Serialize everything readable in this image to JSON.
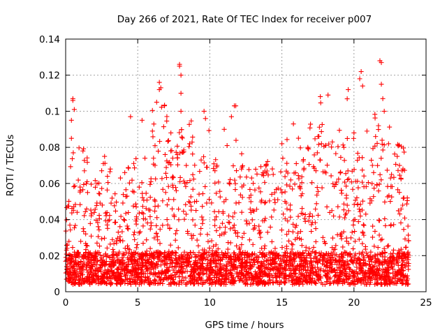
{
  "chart_data": {
    "type": "scatter",
    "title": "Day 266 of 2021, Rate Of TEC Index for receiver p007",
    "xlabel": "GPS time / hours",
    "ylabel": "ROTI / TECUs",
    "xlim": [
      0,
      25
    ],
    "ylim": [
      0,
      0.14
    ],
    "xticks": [
      0,
      5,
      10,
      15,
      20,
      25
    ],
    "yticks": [
      0,
      0.02,
      0.04,
      0.06,
      0.08,
      0.1,
      0.12,
      0.14
    ],
    "xtick_labels": [
      "0",
      "5",
      "10",
      "15",
      "20",
      "25"
    ],
    "ytick_labels": [
      "0",
      "0.02",
      "0.04",
      "0.06",
      "0.08",
      "0.1",
      "0.12",
      "0.14"
    ],
    "grid": true,
    "marker": "+",
    "color": "#ff0000",
    "series": [
      {
        "points": [
          [
            0.5,
            0.107
          ],
          [
            0.5,
            0.106
          ],
          [
            0.4,
            0.095
          ],
          [
            0.6,
            0.101
          ],
          [
            0.4,
            0.085
          ],
          [
            1.2,
            0.078
          ],
          [
            4.5,
            0.097
          ],
          [
            5.3,
            0.095
          ],
          [
            6.5,
            0.116
          ],
          [
            6.6,
            0.113
          ],
          [
            6.5,
            0.112
          ],
          [
            7.3,
            0.088
          ],
          [
            7.9,
            0.126
          ],
          [
            7.9,
            0.125
          ],
          [
            8.0,
            0.12
          ],
          [
            8.0,
            0.11
          ],
          [
            8.0,
            0.1
          ],
          [
            9.6,
            0.1
          ],
          [
            9.7,
            0.096
          ],
          [
            11.7,
            0.103
          ],
          [
            11.8,
            0.103
          ],
          [
            11.5,
            0.097
          ],
          [
            11.0,
            0.09
          ],
          [
            15.8,
            0.093
          ],
          [
            18.2,
            0.109
          ],
          [
            19.6,
            0.112
          ],
          [
            20.4,
            0.118
          ],
          [
            20.5,
            0.122
          ],
          [
            20.6,
            0.114
          ],
          [
            21.8,
            0.128
          ],
          [
            21.9,
            0.127
          ],
          [
            21.9,
            0.115
          ],
          [
            22.0,
            0.107
          ],
          [
            22.1,
            0.1
          ],
          [
            21.7,
            0.092
          ],
          [
            1.0,
            0.058
          ],
          [
            1.3,
            0.067
          ],
          [
            2.7,
            0.075
          ],
          [
            3.1,
            0.068
          ],
          [
            3.8,
            0.063
          ],
          [
            4.1,
            0.066
          ],
          [
            5.5,
            0.074
          ],
          [
            6.2,
            0.07
          ],
          [
            6.9,
            0.076
          ],
          [
            8.6,
            0.082
          ],
          [
            9.4,
            0.073
          ],
          [
            10.5,
            0.07
          ],
          [
            11.2,
            0.081
          ],
          [
            12.2,
            0.068
          ],
          [
            12.9,
            0.063
          ],
          [
            13.7,
            0.066
          ],
          [
            14.4,
            0.065
          ],
          [
            15.0,
            0.082
          ],
          [
            16.0,
            0.071
          ],
          [
            16.8,
            0.08
          ],
          [
            17.5,
            0.086
          ],
          [
            18.5,
            0.083
          ],
          [
            19.3,
            0.08
          ],
          [
            20.0,
            0.088
          ],
          [
            20.9,
            0.089
          ],
          [
            21.5,
            0.086
          ],
          [
            22.4,
            0.082
          ],
          [
            23.0,
            0.075
          ],
          [
            23.4,
            0.068
          ],
          [
            23.7,
            0.052
          ]
        ]
      }
    ]
  }
}
